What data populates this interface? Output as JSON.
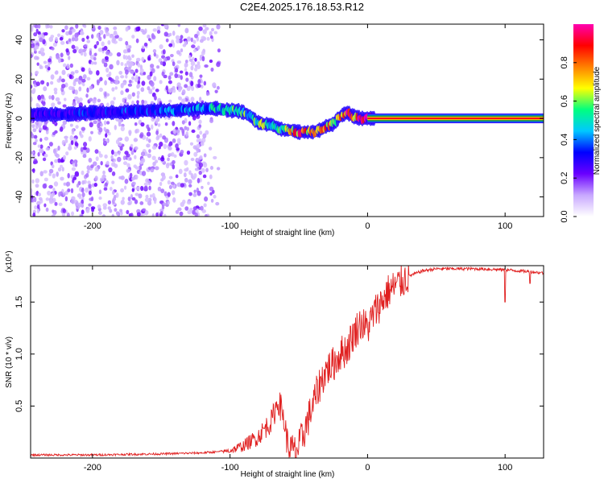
{
  "title": "C2E4.2025.176.18.53.R12",
  "chart_data": [
    {
      "type": "heatmap",
      "xlabel": "Height of straight line (km)",
      "ylabel": "Frequency (Hz)",
      "xlim": [
        -245,
        128
      ],
      "ylim": [
        -50,
        48
      ],
      "x_ticks": [
        -200,
        -100,
        0,
        100
      ],
      "y_ticks": [
        -40,
        -20,
        0,
        20,
        40
      ],
      "colorbar": {
        "label": "Normalized spectral amplitude",
        "range": [
          0.0,
          1.0
        ],
        "ticks": [
          "0.0",
          "0.2",
          "0.4",
          "0.6",
          "0.8"
        ],
        "tick_values": [
          0.0,
          0.2,
          0.4,
          0.6,
          0.8
        ],
        "colors": [
          "#ffffff",
          "#c8a8ff",
          "#6a00ff",
          "#0000ff",
          "#00c8ff",
          "#00ff7f",
          "#ffff00",
          "#ff8000",
          "#ff0000",
          "#ff00b0"
        ]
      },
      "ridge": {
        "x": [
          -245,
          -220,
          -200,
          -180,
          -160,
          -140,
          -120,
          -110,
          -100,
          -95,
          -90,
          -85,
          -80,
          -75,
          -70,
          -65,
          -60,
          -55,
          -50,
          -45,
          -40,
          -35,
          -30,
          -25,
          -20,
          -15,
          -10,
          -5,
          0,
          20,
          50,
          100,
          128
        ],
        "y": [
          2,
          2,
          3,
          3,
          4,
          4,
          5,
          5,
          4,
          4,
          3,
          1,
          -2,
          -3,
          -3,
          -5,
          -6,
          -6,
          -7,
          -7,
          -7,
          -6,
          -4,
          -3,
          1,
          3,
          1,
          0,
          0,
          0,
          0,
          0,
          0
        ],
        "amplitude": [
          0.3,
          0.3,
          0.35,
          0.35,
          0.35,
          0.4,
          0.45,
          0.5,
          0.55,
          0.6,
          0.55,
          0.5,
          0.55,
          0.6,
          0.55,
          0.5,
          0.6,
          0.7,
          0.8,
          0.8,
          0.75,
          0.7,
          0.75,
          0.75,
          0.8,
          0.85,
          0.85,
          0.9,
          0.95,
          0.97,
          0.97,
          0.97,
          0.97
        ]
      },
      "noise_region_x": [
        -245,
        -108
      ],
      "noise_amplitude_range": [
        0.05,
        0.3
      ]
    },
    {
      "type": "line",
      "xlabel": "Height of straight line (km)",
      "ylabel": "SNR (10 * v/v)",
      "scale_note": "(x10⁴)",
      "xlim": [
        -245,
        128
      ],
      "ylim": [
        0,
        1.85
      ],
      "x_ticks": [
        -200,
        -100,
        0,
        100
      ],
      "y_ticks": [
        0.5,
        1.0,
        1.5
      ],
      "y_tick_labels": [
        "0.5",
        "1.0",
        "1.5"
      ],
      "color": "#e02020",
      "x": [
        -245,
        -200,
        -150,
        -120,
        -100,
        -90,
        -80,
        -75,
        -70,
        -65,
        -62,
        -60,
        -58,
        -55,
        -52,
        -50,
        -45,
        -40,
        -35,
        -30,
        -25,
        -20,
        -15,
        -10,
        -5,
        0,
        5,
        10,
        15,
        20,
        30,
        40,
        50,
        60,
        80,
        100,
        110,
        120,
        128
      ],
      "y": [
        0.03,
        0.03,
        0.04,
        0.05,
        0.07,
        0.12,
        0.2,
        0.28,
        0.35,
        0.55,
        0.45,
        0.3,
        0.12,
        0.08,
        0.06,
        0.1,
        0.3,
        0.5,
        0.7,
        0.85,
        0.9,
        1.0,
        1.05,
        1.2,
        1.3,
        1.25,
        1.4,
        1.5,
        1.6,
        1.65,
        1.75,
        1.8,
        1.82,
        1.82,
        1.82,
        1.81,
        1.8,
        1.79,
        1.78
      ],
      "spikes": [
        {
          "x": 100,
          "y": 1.5
        },
        {
          "x": 118,
          "y": 1.68
        }
      ]
    }
  ]
}
